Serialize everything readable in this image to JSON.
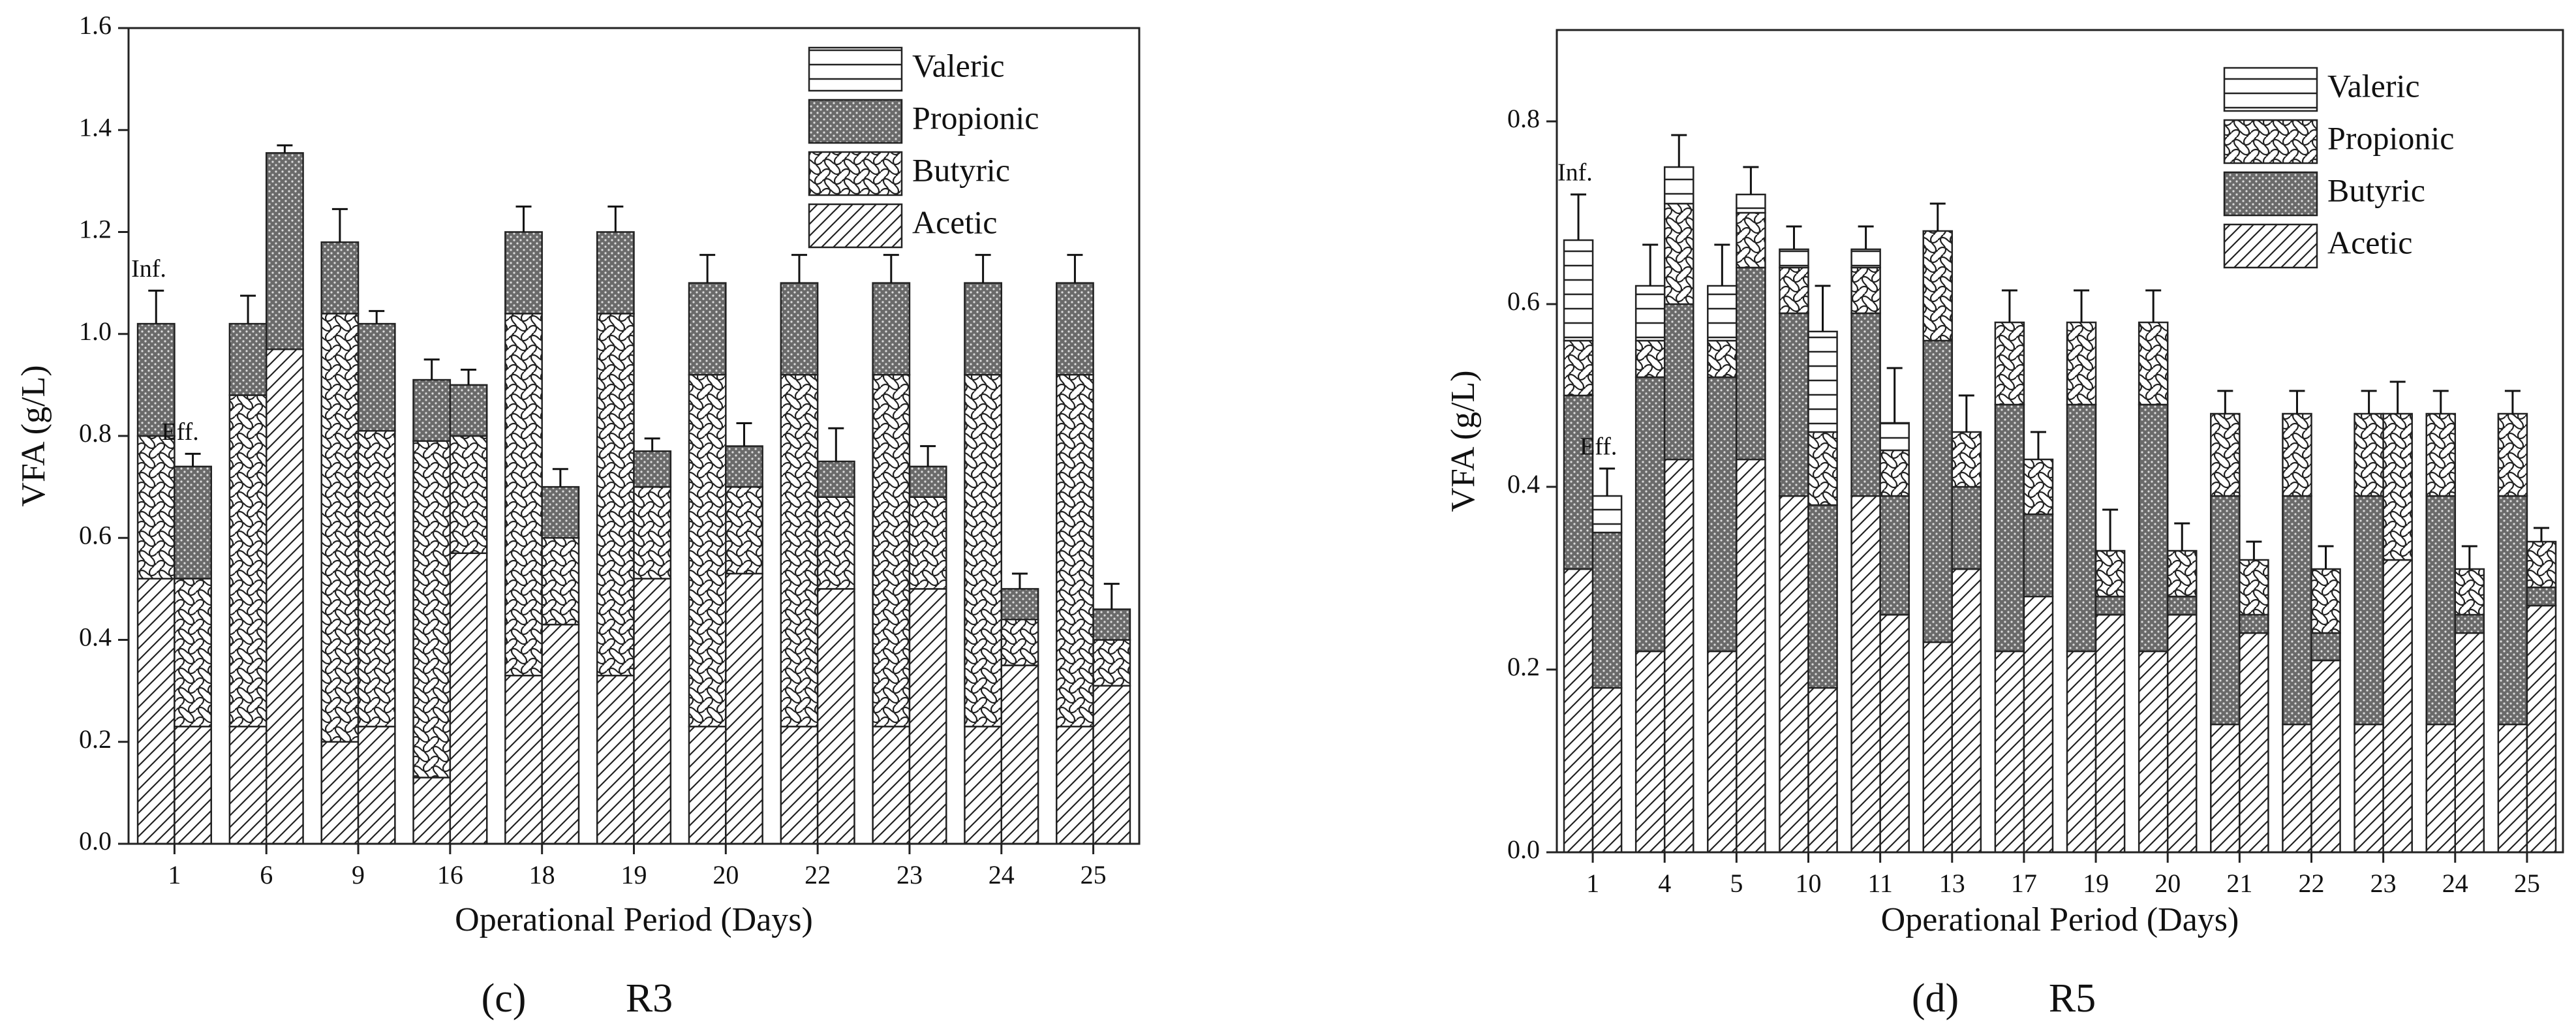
{
  "chart_data": [
    {
      "type": "stacked_bar",
      "caption_label": "(c)",
      "caption_name": "R3",
      "xlabel": "Operational Period (Days)",
      "ylabel": "VFA (g/L)",
      "categories": [
        "1",
        "6",
        "9",
        "16",
        "18",
        "19",
        "20",
        "22",
        "23",
        "24",
        "25"
      ],
      "ylim": [
        0,
        1.6
      ],
      "yticks": [
        {
          "value": 0,
          "label": "0.0"
        },
        0.2,
        0.4,
        0.6,
        0.8,
        {
          "value": 1,
          "label": "1.0"
        },
        1.2,
        1.4,
        1.6
      ],
      "legend": "upper right",
      "series": [
        {
          "name": "Acetic",
          "pattern": "hatch"
        },
        {
          "name": "Butyric",
          "pattern": "wave"
        },
        {
          "name": "Propionic",
          "pattern": "dots"
        },
        {
          "name": "Valeric",
          "pattern": "horizontal"
        }
      ],
      "stacks": [
        {
          "label": "Inf.",
          "values": [
            [
              0.52,
              0.23,
              0.2,
              0.13,
              0.33,
              0.33,
              0.23,
              0.23,
              0.23,
              0.23,
              0.23
            ],
            [
              0.28,
              0.65,
              0.84,
              0.66,
              0.71,
              0.71,
              0.69,
              0.69,
              0.69,
              0.69,
              0.69
            ],
            [
              0.22,
              0.14,
              0.14,
              0.12,
              0.16,
              0.16,
              0.18,
              0.18,
              0.18,
              0.18,
              0.18
            ],
            [
              0,
              0,
              0,
              0,
              0,
              0,
              0,
              0,
              0,
              0,
              0
            ]
          ],
          "errors": [
            0.065,
            0.055,
            0.065,
            0.04,
            0.05,
            0.05,
            0.055,
            0.055,
            0.055,
            0.055,
            0.055
          ]
        },
        {
          "label": "Eff.",
          "values": [
            [
              0.23,
              0.97,
              0.23,
              0.57,
              0.43,
              0.52,
              0.53,
              0.5,
              0.5,
              0.35,
              0.31
            ],
            [
              0.29,
              0,
              0.58,
              0.23,
              0.17,
              0.18,
              0.17,
              0.18,
              0.18,
              0.09,
              0.09
            ],
            [
              0.22,
              0.385,
              0.21,
              0.1,
              0.1,
              0.07,
              0.08,
              0.07,
              0.06,
              0.06,
              0.06
            ],
            [
              0,
              0,
              0,
              0,
              0,
              0,
              0,
              0,
              0,
              0,
              0
            ]
          ],
          "errors": [
            0.025,
            0.015,
            0.025,
            0.03,
            0.035,
            0.025,
            0.045,
            0.065,
            0.04,
            0.03,
            0.05
          ]
        }
      ]
    },
    {
      "type": "stacked_bar",
      "caption_label": "(d)",
      "caption_name": "R5",
      "xlabel": "Operational Period (Days)",
      "ylabel": "VFA (g/L)",
      "categories": [
        "1",
        "4",
        "5",
        "10",
        "11",
        "13",
        "17",
        "19",
        "20",
        "21",
        "22",
        "23",
        "24",
        "25"
      ],
      "ylim": [
        0,
        0.9
      ],
      "yticks": [
        {
          "value": 0,
          "label": "0.0"
        },
        0.2,
        0.4,
        0.6,
        0.8
      ],
      "legend": "upper right",
      "series": [
        {
          "name": "Acetic",
          "pattern": "hatch"
        },
        {
          "name": "Butyric",
          "pattern": "dots"
        },
        {
          "name": "Propionic",
          "pattern": "wave"
        },
        {
          "name": "Valeric",
          "pattern": "horizontal"
        }
      ],
      "stacks": [
        {
          "label": "Inf.",
          "values": [
            [
              0.31,
              0.22,
              0.22,
              0.39,
              0.39,
              0.23,
              0.22,
              0.22,
              0.22,
              0.14,
              0.14,
              0.14,
              0.14,
              0.14
            ],
            [
              0.19,
              0.3,
              0.3,
              0.2,
              0.2,
              0.33,
              0.27,
              0.27,
              0.27,
              0.25,
              0.25,
              0.25,
              0.25,
              0.25
            ],
            [
              0.06,
              0.04,
              0.04,
              0.05,
              0.05,
              0.12,
              0.09,
              0.09,
              0.09,
              0.09,
              0.09,
              0.09,
              0.09,
              0.09
            ],
            [
              0.11,
              0.06,
              0.06,
              0.02,
              0.02,
              0,
              0,
              0,
              0,
              0,
              0,
              0,
              0,
              0
            ]
          ],
          "errors": [
            0.05,
            0.045,
            0.045,
            0.025,
            0.025,
            0.03,
            0.035,
            0.035,
            0.035,
            0.025,
            0.025,
            0.025,
            0.025,
            0.025
          ]
        },
        {
          "label": "Eff.",
          "values": [
            [
              0.18,
              0.43,
              0.43,
              0.18,
              0.26,
              0.31,
              0.28,
              0.26,
              0.26,
              0.24,
              0.21,
              0.32,
              0.24,
              0.27
            ],
            [
              0.17,
              0.17,
              0.21,
              0.2,
              0.13,
              0.09,
              0.09,
              0.02,
              0.02,
              0.02,
              0.03,
              0,
              0.02,
              0.02
            ],
            [
              0,
              0.11,
              0.06,
              0.08,
              0.05,
              0.06,
              0.06,
              0.05,
              0.05,
              0.06,
              0.07,
              0.16,
              0.05,
              0.05
            ],
            [
              0.04,
              0.04,
              0.02,
              0.11,
              0.03,
              0,
              0,
              0,
              0,
              0,
              0,
              0,
              0,
              0
            ]
          ],
          "errors": [
            0.03,
            0.035,
            0.03,
            0.05,
            0.06,
            0.04,
            0.03,
            0.045,
            0.03,
            0.02,
            0.025,
            0.035,
            0.025,
            0.015
          ]
        }
      ]
    }
  ]
}
